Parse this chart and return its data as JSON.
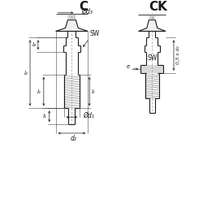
{
  "bg_color": "#ffffff",
  "line_color": "#1a1a1a",
  "title_C": "C",
  "title_CK": "CK",
  "label_d3": "Ød₃",
  "label_d1": "Ød₁",
  "label_d2": "d₂",
  "label_l1": "l₁",
  "label_l2": "l₂",
  "label_l3": "l₃",
  "label_l4": "l₄",
  "label_l5": "l₅",
  "label_SW": "SW",
  "label_e": "e",
  "label_05d2": "0,5 x d₂",
  "fig_width": 2.5,
  "fig_height": 2.5,
  "dpi": 100
}
